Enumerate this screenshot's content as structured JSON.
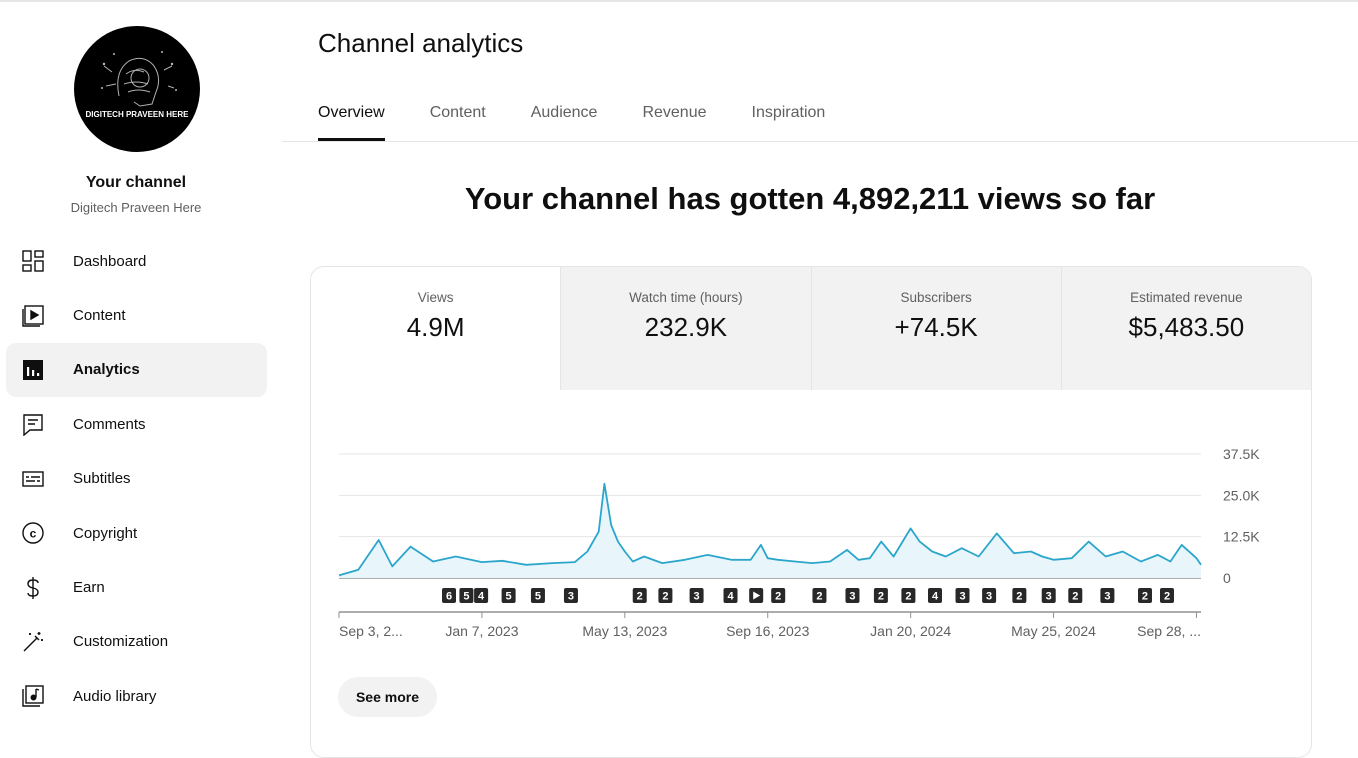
{
  "sidebar": {
    "avatar_text": "DIGITECH PRAVEEN HERE",
    "channel_title": "Your channel",
    "channel_name": "Digitech Praveen Here",
    "items": [
      {
        "label": "Dashboard",
        "icon": "dashboard-icon"
      },
      {
        "label": "Content",
        "icon": "content-icon"
      },
      {
        "label": "Analytics",
        "icon": "analytics-icon",
        "active": true
      },
      {
        "label": "Comments",
        "icon": "comments-icon"
      },
      {
        "label": "Subtitles",
        "icon": "subtitles-icon"
      },
      {
        "label": "Copyright",
        "icon": "copyright-icon"
      },
      {
        "label": "Earn",
        "icon": "earn-icon"
      },
      {
        "label": "Customization",
        "icon": "customization-icon"
      },
      {
        "label": "Audio library",
        "icon": "audio-library-icon"
      }
    ]
  },
  "page_title": "Channel analytics",
  "tabs": [
    "Overview",
    "Content",
    "Audience",
    "Revenue",
    "Inspiration"
  ],
  "headline": "Your channel has gotten 4,892,211 views so far",
  "metrics": [
    {
      "label": "Views",
      "value": "4.9M"
    },
    {
      "label": "Watch time (hours)",
      "value": "232.9K"
    },
    {
      "label": "Subscribers",
      "value": "+74.5K"
    },
    {
      "label": "Estimated revenue",
      "value": "$5,483.50"
    }
  ],
  "see_more": "See more",
  "colors": {
    "accent": "#2ba6cb",
    "fill": "#e8f5fb",
    "marker": "#282828"
  },
  "chart_data": {
    "type": "area",
    "ylim": [
      0,
      37500
    ],
    "y_ticks": [
      0,
      12500,
      25000,
      37500
    ],
    "y_tick_labels": [
      "0",
      "12.5K",
      "25.0K",
      "37.5K"
    ],
    "x_range": [
      "2022-09-03",
      "2024-10-02"
    ],
    "x_tick_labels": [
      "Sep 3, 2...",
      "Jan 7, 2023",
      "May 13, 2023",
      "Sep 16, 2023",
      "Jan 20, 2024",
      "May 25, 2024",
      "Sep 28, ..."
    ],
    "x_tick_dates": [
      "2022-09-03",
      "2023-01-07",
      "2023-05-13",
      "2023-09-16",
      "2024-01-20",
      "2024-05-25",
      "2024-09-28"
    ],
    "series": [
      {
        "x": [
          "2022-09-03",
          "2022-09-20",
          "2022-10-08",
          "2022-10-20",
          "2022-11-05",
          "2022-11-25",
          "2022-12-15",
          "2023-01-07",
          "2023-01-25",
          "2023-02-15",
          "2023-03-10",
          "2023-03-30",
          "2023-04-10",
          "2023-04-20",
          "2023-04-25",
          "2023-05-01",
          "2023-05-07",
          "2023-05-13",
          "2023-05-20",
          "2023-05-30",
          "2023-06-15",
          "2023-07-05",
          "2023-07-25",
          "2023-08-15",
          "2023-09-01",
          "2023-09-10",
          "2023-09-16",
          "2023-09-25",
          "2023-10-10",
          "2023-10-25",
          "2023-11-10",
          "2023-11-25",
          "2023-12-05",
          "2023-12-15",
          "2023-12-25",
          "2024-01-05",
          "2024-01-20",
          "2024-01-28",
          "2024-02-08",
          "2024-02-20",
          "2024-03-05",
          "2024-03-20",
          "2024-04-05",
          "2024-04-20",
          "2024-05-05",
          "2024-05-15",
          "2024-05-25",
          "2024-06-10",
          "2024-06-25",
          "2024-07-10",
          "2024-07-25",
          "2024-08-10",
          "2024-08-25",
          "2024-09-05",
          "2024-09-15",
          "2024-09-28",
          "2024-10-02"
        ],
        "values": [
          800,
          2500,
          11500,
          3500,
          9500,
          5000,
          6500,
          4800,
          5200,
          4000,
          4500,
          4800,
          8000,
          14000,
          28500,
          16000,
          11000,
          8000,
          5000,
          6500,
          4500,
          5500,
          7000,
          5500,
          5500,
          10000,
          6000,
          5500,
          5000,
          4500,
          5000,
          8500,
          5500,
          6000,
          11000,
          6500,
          15000,
          11000,
          8000,
          6500,
          9000,
          6500,
          13500,
          7500,
          8000,
          6500,
          5500,
          6000,
          11000,
          6500,
          8000,
          5000,
          7000,
          5000,
          10000,
          6000,
          4000
        ]
      }
    ],
    "markers": [
      {
        "date": "2022-12-01",
        "label": "6"
      },
      {
        "date": "2022-12-20",
        "label": "5"
      },
      {
        "date": "2023-01-05",
        "label": "4"
      },
      {
        "date": "2023-02-04",
        "label": "5"
      },
      {
        "date": "2023-03-08",
        "label": "5"
      },
      {
        "date": "2023-04-13",
        "label": "3"
      },
      {
        "date": "2023-06-27",
        "label": "2"
      },
      {
        "date": "2023-07-25",
        "label": "2"
      },
      {
        "date": "2023-08-28",
        "label": "3"
      },
      {
        "date": "2023-10-04",
        "label": "4"
      },
      {
        "date": "2023-11-01",
        "label": "play-icon"
      },
      {
        "date": "2023-11-25",
        "label": "2"
      },
      {
        "date": "2024-01-09",
        "label": "2"
      },
      {
        "date": "2024-02-14",
        "label": "3"
      },
      {
        "date": "2024-03-16",
        "label": "2"
      },
      {
        "date": "2024-04-15",
        "label": "2"
      },
      {
        "date": "2024-05-14",
        "label": "4"
      },
      {
        "date": "2024-06-13",
        "label": "3"
      },
      {
        "date": "2024-07-12",
        "label": "3"
      },
      {
        "date": "2024-08-14",
        "label": "2"
      },
      {
        "date": "2024-09-15",
        "label": "3"
      },
      {
        "date": "2024-10-14",
        "label": "2"
      },
      {
        "date": "2024-11-18",
        "label": "3"
      },
      {
        "date": "2024-12-29",
        "label": "2"
      },
      {
        "date": "2025-01-22",
        "label": "2"
      }
    ]
  }
}
